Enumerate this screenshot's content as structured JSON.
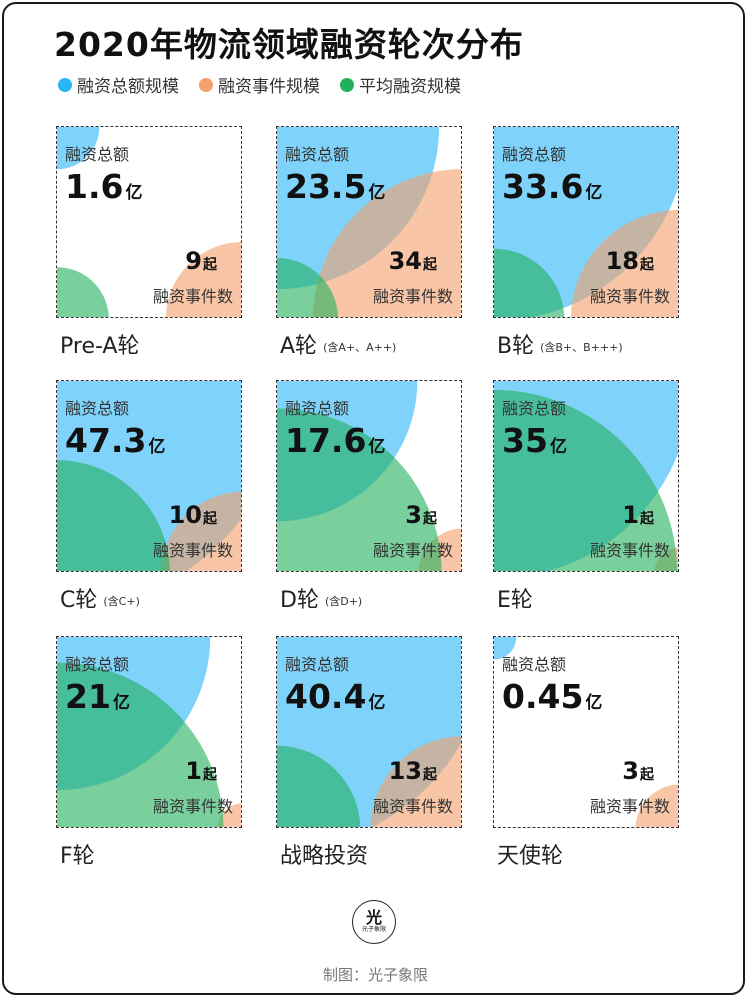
{
  "title": "2020年物流领域融资轮次分布",
  "legend": [
    {
      "label": "融资总额规模",
      "color": "#29b6f6"
    },
    {
      "label": "融资事件规模",
      "color": "#f4a06b"
    },
    {
      "label": "平均融资规模",
      "color": "#21b15b"
    }
  ],
  "labels": {
    "amount": "融资总额",
    "count": "融资事件数",
    "amount_unit": "亿",
    "count_unit": "起"
  },
  "credit": "制图：光子象限",
  "logo": {
    "glyph": "光",
    "text": "光子象限"
  },
  "chart_data": {
    "type": "bubble-grid",
    "title": "2020年物流领域融资轮次分布",
    "series": [
      "融资总额规模",
      "融资事件规模",
      "平均融资规模"
    ],
    "rounds": [
      {
        "name": "Pre-A轮",
        "note": "",
        "amount": "1.6",
        "count": "9",
        "avg_level": 0.28
      },
      {
        "name": "A轮",
        "note": "(含A+、A++)",
        "amount": "23.5",
        "count": "34",
        "avg_level": 0.33
      },
      {
        "name": "B轮",
        "note": "(含B+、B+++)",
        "amount": "33.6",
        "count": "18",
        "avg_level": 0.38
      },
      {
        "name": "C轮",
        "note": "(含C+)",
        "amount": "47.3",
        "count": "10",
        "avg_level": 0.61
      },
      {
        "name": "D轮",
        "note": "(含D+)",
        "amount": "17.6",
        "count": "3",
        "avg_level": 0.89
      },
      {
        "name": "E轮",
        "note": "",
        "amount": "35",
        "count": "1",
        "avg_level": 0.99
      },
      {
        "name": "F轮",
        "note": "",
        "amount": "21",
        "count": "1",
        "avg_level": 0.9
      },
      {
        "name": "战略投资",
        "note": "",
        "amount": "40.4",
        "count": "13",
        "avg_level": 0.45
      },
      {
        "name": "天使轮",
        "note": "",
        "amount": "0.45",
        "count": "3",
        "avg_level": 0.0
      }
    ]
  }
}
